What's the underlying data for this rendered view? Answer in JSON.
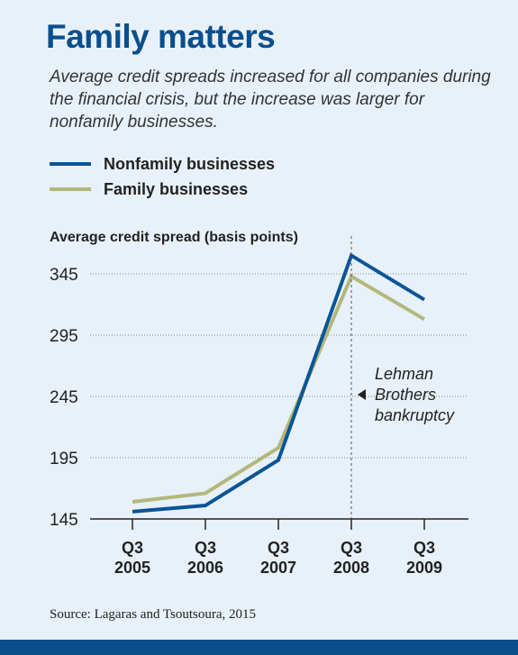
{
  "header": {
    "title": "Family matters",
    "subtitle": "Average credit spreads increased for all companies during the financial crisis, but the increase was larger for nonfamily businesses."
  },
  "footer": {
    "source": "Source: Lagaras and Tsoutsoura, 2015"
  },
  "colors": {
    "nonfamily": "#0a5596",
    "family": "#b3b77a",
    "title": "#0a4f8c",
    "background": "#e8f1f9"
  },
  "chart_data": {
    "type": "line",
    "ylabel": "Average credit spread (basis points)",
    "categories": [
      "Q3 2005",
      "Q3 2006",
      "Q3 2007",
      "Q3 2008",
      "Q3 2009"
    ],
    "category_lines": [
      [
        "Q3",
        "2005"
      ],
      [
        "Q3",
        "2006"
      ],
      [
        "Q3",
        "2007"
      ],
      [
        "Q3",
        "2008"
      ],
      [
        "Q3",
        "2009"
      ]
    ],
    "yticks": [
      145,
      195,
      245,
      295,
      345
    ],
    "ylim": [
      145,
      350
    ],
    "grid": "horizontal dotted",
    "legend": "top-left",
    "series": [
      {
        "name": "Nonfamily businesses",
        "key": "nonfamily",
        "values": [
          151,
          156,
          193,
          360,
          324
        ]
      },
      {
        "name": "Family businesses",
        "key": "family",
        "values": [
          159,
          166,
          203,
          343,
          308
        ]
      }
    ],
    "annotation": {
      "x": "Q3 2008",
      "lines": [
        "Lehman",
        "Brothers",
        "bankruptcy"
      ]
    }
  }
}
